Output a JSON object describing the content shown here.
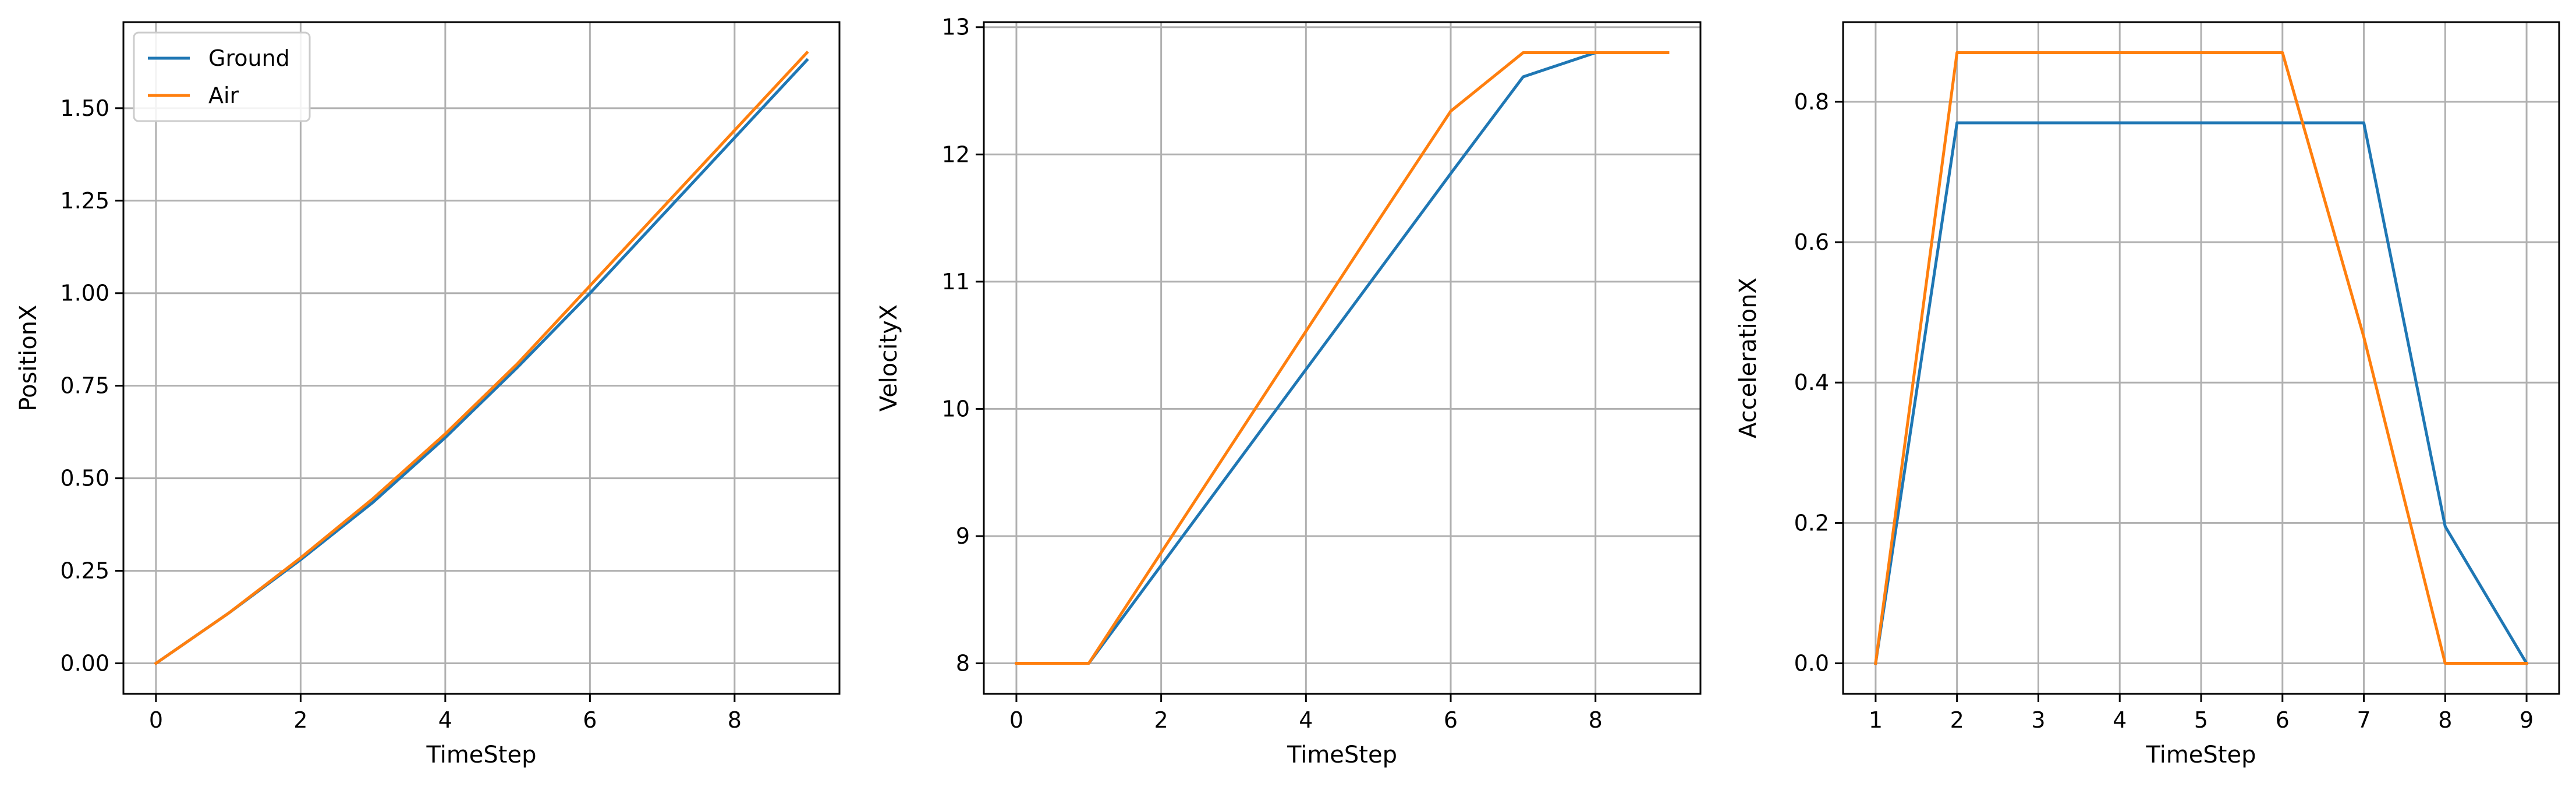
{
  "colors": {
    "ground": "#1f77b4",
    "air": "#ff7f0e",
    "grid": "#b0b0b0",
    "axes": "#000000"
  },
  "chart_data": [
    {
      "type": "line",
      "xlabel": "TimeStep",
      "ylabel": "PositionX",
      "xlim": [
        -0.45,
        9.45
      ],
      "ylim": [
        -0.0825,
        1.7325
      ],
      "xticks": [
        0,
        2,
        4,
        6,
        8
      ],
      "yticks": [
        0.0,
        0.25,
        0.5,
        0.75,
        1.0,
        1.25,
        1.5
      ],
      "ytick_labels": [
        "0.00",
        "0.25",
        "0.50",
        "0.75",
        "1.00",
        "1.25",
        "1.50"
      ],
      "grid": true,
      "legend": "upper-left",
      "series": [
        {
          "name": "Ground",
          "color": "ground",
          "x": [
            0,
            1,
            2,
            3,
            4,
            5,
            6,
            7,
            8,
            9
          ],
          "y": [
            0.0,
            0.135,
            0.28,
            0.435,
            0.61,
            0.8,
            1.0,
            1.21,
            1.42,
            1.63
          ]
        },
        {
          "name": "Air",
          "color": "air",
          "x": [
            0,
            1,
            2,
            3,
            4,
            5,
            6,
            7,
            8,
            9
          ],
          "y": [
            0.0,
            0.135,
            0.285,
            0.445,
            0.62,
            0.81,
            1.02,
            1.23,
            1.44,
            1.65
          ]
        }
      ]
    },
    {
      "type": "line",
      "xlabel": "TimeStep",
      "ylabel": "VelocityX",
      "xlim": [
        -0.45,
        9.45
      ],
      "ylim": [
        7.76,
        13.04
      ],
      "xticks": [
        0,
        2,
        4,
        6,
        8
      ],
      "yticks": [
        8,
        9,
        10,
        11,
        12,
        13
      ],
      "ytick_labels": [
        "8",
        "9",
        "10",
        "11",
        "12",
        "13"
      ],
      "grid": true,
      "series": [
        {
          "color": "ground",
          "x": [
            0,
            1,
            2,
            3,
            4,
            5,
            6,
            7,
            8,
            9
          ],
          "y": [
            8.0,
            8.0,
            8.77,
            9.54,
            10.31,
            11.08,
            11.85,
            12.61,
            12.8,
            12.8
          ]
        },
        {
          "color": "air",
          "x": [
            0,
            1,
            2,
            3,
            4,
            5,
            6,
            7,
            8,
            9
          ],
          "y": [
            8.0,
            8.0,
            8.87,
            9.74,
            10.61,
            11.48,
            12.34,
            12.8,
            12.8,
            12.8
          ]
        }
      ]
    },
    {
      "type": "line",
      "xlabel": "TimeStep",
      "ylabel": "AccelerationX",
      "xlim": [
        0.6,
        9.4
      ],
      "ylim": [
        -0.0435,
        0.9135
      ],
      "xticks": [
        1,
        2,
        3,
        4,
        5,
        6,
        7,
        8,
        9
      ],
      "yticks": [
        0.0,
        0.2,
        0.4,
        0.6,
        0.8
      ],
      "ytick_labels": [
        "0.0",
        "0.2",
        "0.4",
        "0.6",
        "0.8"
      ],
      "grid": true,
      "series": [
        {
          "color": "ground",
          "x": [
            1,
            2,
            3,
            4,
            5,
            6,
            7,
            8,
            9
          ],
          "y": [
            0.0,
            0.77,
            0.77,
            0.77,
            0.77,
            0.77,
            0.77,
            0.195,
            0.0
          ]
        },
        {
          "color": "air",
          "x": [
            1,
            2,
            3,
            4,
            5,
            6,
            7,
            8,
            9
          ],
          "y": [
            0.0,
            0.87,
            0.87,
            0.87,
            0.87,
            0.87,
            0.465,
            0.0,
            0.0
          ]
        }
      ]
    }
  ]
}
